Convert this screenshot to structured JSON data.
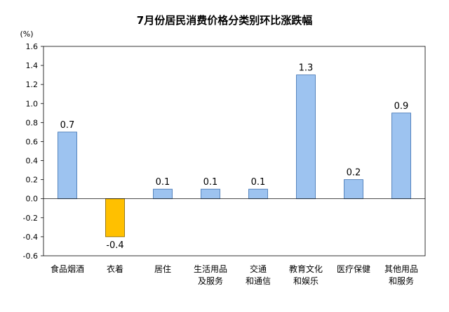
{
  "chart_data": {
    "type": "bar",
    "title": "7月份居民消费价格分类别环比涨跌幅",
    "ylabel": "(%)",
    "xlabel": "",
    "ylim": [
      -0.6,
      1.6
    ],
    "yticks": [
      "1.6",
      "1.4",
      "1.2",
      "1.0",
      "0.8",
      "0.6",
      "0.4",
      "0.2",
      "0.0",
      "-0.2",
      "-0.4",
      "-0.6"
    ],
    "categories": [
      [
        "食品烟酒"
      ],
      [
        "衣着"
      ],
      [
        "居住"
      ],
      [
        "生活用品",
        "及服务"
      ],
      [
        "交通",
        "和通信"
      ],
      [
        "教育文化",
        "和娱乐"
      ],
      [
        "医疗保健"
      ],
      [
        "其他用品",
        "和服务"
      ]
    ],
    "values": [
      0.7,
      -0.4,
      0.1,
      0.1,
      0.1,
      1.3,
      0.2,
      0.9
    ],
    "data_labels": [
      "0.7",
      "-0.4",
      "0.1",
      "0.1",
      "0.1",
      "1.3",
      "0.2",
      "0.9"
    ],
    "colors": {
      "positive_fill": "#9DC3F0",
      "positive_stroke": "#3A6FB0",
      "negative_fill": "#FFC000",
      "negative_stroke": "#7F6000",
      "axis": "#000000"
    },
    "grid": false,
    "legend": "none"
  }
}
